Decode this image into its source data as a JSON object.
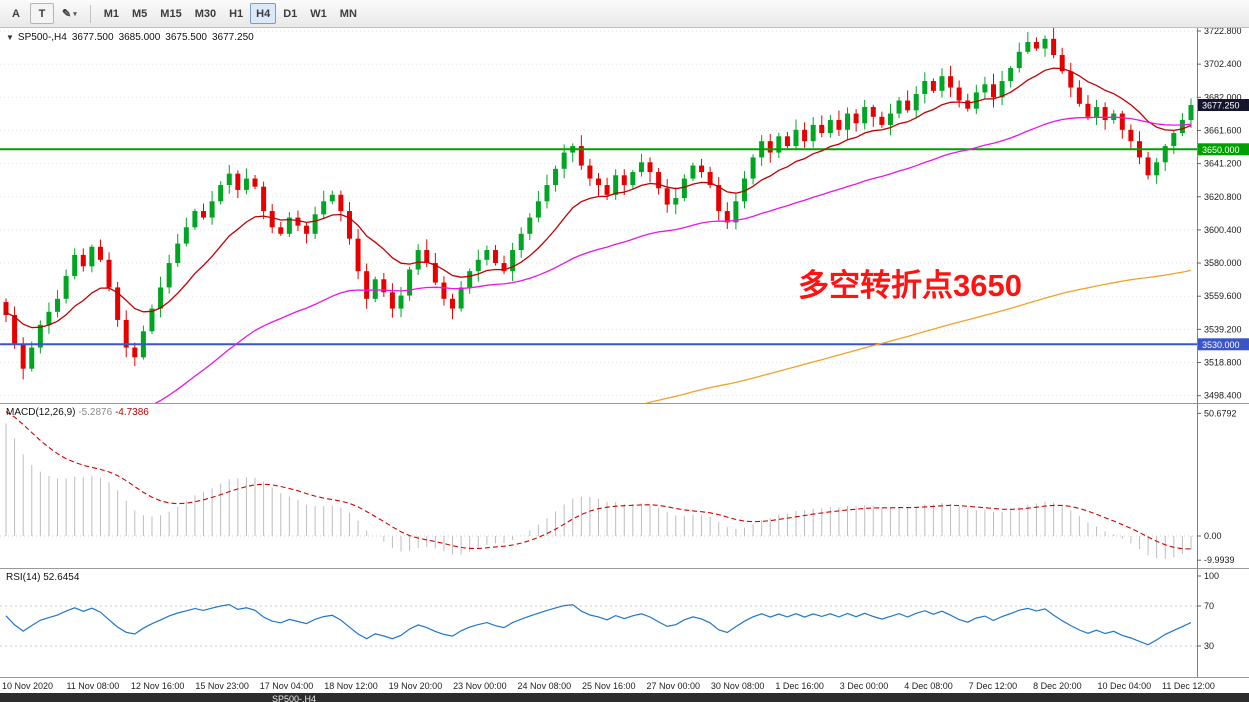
{
  "toolbar": {
    "buttons": [
      {
        "id": "cursor",
        "label": "A"
      },
      {
        "id": "text",
        "label": "T"
      },
      {
        "id": "draw",
        "label": "✎",
        "caret": "▾"
      }
    ],
    "timeframes": [
      "M1",
      "M5",
      "M15",
      "M30",
      "H1",
      "H4",
      "D1",
      "W1",
      "MN"
    ],
    "active_timeframe": "H4"
  },
  "chart": {
    "collapse_icon": "▼",
    "title": "SP500-,H4",
    "ohlc": {
      "open": "3677.500",
      "high": "3685.000",
      "low": "3675.500",
      "close": "3677.250"
    },
    "annotation": "多空转折点3650",
    "current_price": "3677.250",
    "current_price_value": 3677.25,
    "current_price_bg": "#15152e",
    "price_labels": [
      "3722.800",
      "3702.400",
      "3682.000",
      "3661.600",
      "3641.200",
      "3620.800",
      "3600.400",
      "3580.000",
      "3559.600",
      "3539.200",
      "3518.800",
      "3498.400"
    ],
    "levels": [
      {
        "price": 3650,
        "label": "3650.000",
        "color": "#00a000"
      },
      {
        "price": 3530,
        "label": "3530.000",
        "color": "#3a55c8"
      }
    ]
  },
  "macd": {
    "label": "MACD(12,26,9)",
    "value1": "-5.2876",
    "value2": "-4.7386",
    "axis": [
      "50.6792",
      "0.00",
      "-9.9939"
    ],
    "histogram_color": "#bdbdbd",
    "signal_color": "#d40000"
  },
  "rsi": {
    "label": "RSI(14)",
    "value": "52.6454",
    "axis": [
      "100",
      "70",
      "30"
    ],
    "levels": [
      70,
      30
    ],
    "line_color": "#2077c8"
  },
  "time_axis": [
    "10 Nov 2020",
    "11 Nov 08:00",
    "12 Nov 16:00",
    "15 Nov 23:00",
    "17 Nov 04:00",
    "18 Nov 12:00",
    "19 Nov 20:00",
    "23 Nov 00:00",
    "24 Nov 08:00",
    "25 Nov 16:00",
    "27 Nov 00:00",
    "30 Nov 08:00",
    "1 Dec 16:00",
    "3 Dec 00:00",
    "4 Dec 08:00",
    "7 Dec 12:00",
    "8 Dec 20:00",
    "10 Dec 04:00",
    "11 Dec 12:00"
  ],
  "bottom_tabs": [
    "SP500-,H4"
  ],
  "chart_data": {
    "type": "candlestick",
    "symbol": "SP500-",
    "timeframe": "H4",
    "title": "SP500-,H4",
    "ylim": [
      3496,
      3728
    ],
    "x_range": [
      "10 Nov 2020",
      "11 Dec 2020 12:00"
    ],
    "first_open": 3556,
    "closes": [
      3548,
      3530,
      3515,
      3528,
      3542,
      3550,
      3558,
      3572,
      3585,
      3578,
      3590,
      3582,
      3565,
      3545,
      3528,
      3522,
      3538,
      3552,
      3565,
      3580,
      3592,
      3602,
      3612,
      3608,
      3618,
      3628,
      3635,
      3625,
      3632,
      3627,
      3612,
      3602,
      3598,
      3608,
      3603,
      3598,
      3610,
      3618,
      3622,
      3612,
      3595,
      3575,
      3558,
      3570,
      3562,
      3552,
      3560,
      3576,
      3588,
      3580,
      3568,
      3558,
      3552,
      3565,
      3575,
      3582,
      3588,
      3580,
      3575,
      3588,
      3598,
      3608,
      3618,
      3628,
      3638,
      3648,
      3652,
      3640,
      3632,
      3628,
      3622,
      3634,
      3628,
      3636,
      3642,
      3636,
      3626,
      3616,
      3620,
      3632,
      3640,
      3636,
      3628,
      3612,
      3605,
      3618,
      3632,
      3645,
      3655,
      3648,
      3658,
      3652,
      3662,
      3655,
      3665,
      3660,
      3668,
      3662,
      3672,
      3666,
      3676,
      3670,
      3665,
      3672,
      3680,
      3674,
      3684,
      3692,
      3686,
      3695,
      3688,
      3680,
      3675,
      3685,
      3690,
      3682,
      3692,
      3700,
      3710,
      3716,
      3712,
      3718,
      3708,
      3698,
      3688,
      3678,
      3670,
      3676,
      3668,
      3672,
      3662,
      3655,
      3645,
      3634,
      3642,
      3652,
      3660,
      3668,
      3677.25
    ],
    "up_color": "#00a524",
    "down_color": "#e60000",
    "overlays": [
      {
        "name": "ma-fast",
        "type": "ema",
        "period": 13,
        "start": 3550,
        "color": "#c00000"
      },
      {
        "name": "ma-mid",
        "type": "ema",
        "period": 50,
        "start": 3430,
        "color": "#e816e8"
      },
      {
        "name": "ma-slow",
        "type": "ema",
        "period": 200,
        "start": 3380,
        "color": "#efa32b"
      }
    ],
    "hlines": [
      3650,
      3530
    ],
    "indicators": {
      "macd": {
        "params": [
          12,
          26,
          9
        ],
        "last_main": -5.2876,
        "last_signal": -4.7386
      },
      "rsi": {
        "period": 14,
        "last_value": 52.6454
      }
    }
  }
}
